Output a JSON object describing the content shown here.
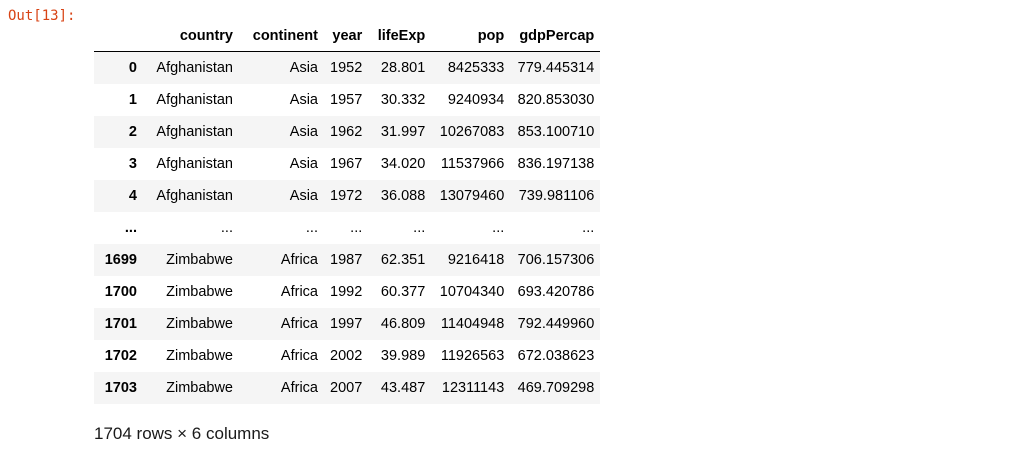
{
  "output": {
    "prompt": "Out[13]:"
  },
  "table": {
    "headers": {
      "index": "",
      "country": "country",
      "continent": "continent",
      "year": "year",
      "lifeExp": "lifeExp",
      "pop": "pop",
      "gdpPercap": "gdpPercap"
    },
    "rows": [
      {
        "index": "0",
        "country": "Afghanistan",
        "continent": "Asia",
        "year": "1952",
        "lifeExp": "28.801",
        "pop": "8425333",
        "gdpPercap": "779.445314"
      },
      {
        "index": "1",
        "country": "Afghanistan",
        "continent": "Asia",
        "year": "1957",
        "lifeExp": "30.332",
        "pop": "9240934",
        "gdpPercap": "820.853030"
      },
      {
        "index": "2",
        "country": "Afghanistan",
        "continent": "Asia",
        "year": "1962",
        "lifeExp": "31.997",
        "pop": "10267083",
        "gdpPercap": "853.100710"
      },
      {
        "index": "3",
        "country": "Afghanistan",
        "continent": "Asia",
        "year": "1967",
        "lifeExp": "34.020",
        "pop": "11537966",
        "gdpPercap": "836.197138"
      },
      {
        "index": "4",
        "country": "Afghanistan",
        "continent": "Asia",
        "year": "1972",
        "lifeExp": "36.088",
        "pop": "13079460",
        "gdpPercap": "739.981106"
      },
      {
        "index": "...",
        "country": "...",
        "continent": "...",
        "year": "...",
        "lifeExp": "...",
        "pop": "...",
        "gdpPercap": "..."
      },
      {
        "index": "1699",
        "country": "Zimbabwe",
        "continent": "Africa",
        "year": "1987",
        "lifeExp": "62.351",
        "pop": "9216418",
        "gdpPercap": "706.157306"
      },
      {
        "index": "1700",
        "country": "Zimbabwe",
        "continent": "Africa",
        "year": "1992",
        "lifeExp": "60.377",
        "pop": "10704340",
        "gdpPercap": "693.420786"
      },
      {
        "index": "1701",
        "country": "Zimbabwe",
        "continent": "Africa",
        "year": "1997",
        "lifeExp": "46.809",
        "pop": "11404948",
        "gdpPercap": "792.449960"
      },
      {
        "index": "1702",
        "country": "Zimbabwe",
        "continent": "Africa",
        "year": "2002",
        "lifeExp": "39.989",
        "pop": "11926563",
        "gdpPercap": "672.038623"
      },
      {
        "index": "1703",
        "country": "Zimbabwe",
        "continent": "Africa",
        "year": "2007",
        "lifeExp": "43.487",
        "pop": "12311143",
        "gdpPercap": "469.709298"
      }
    ]
  },
  "shape": {
    "text": "1704 rows × 6 columns"
  },
  "colors": {
    "prompt": "#d84315",
    "row_stripe": "#f5f5f5"
  }
}
